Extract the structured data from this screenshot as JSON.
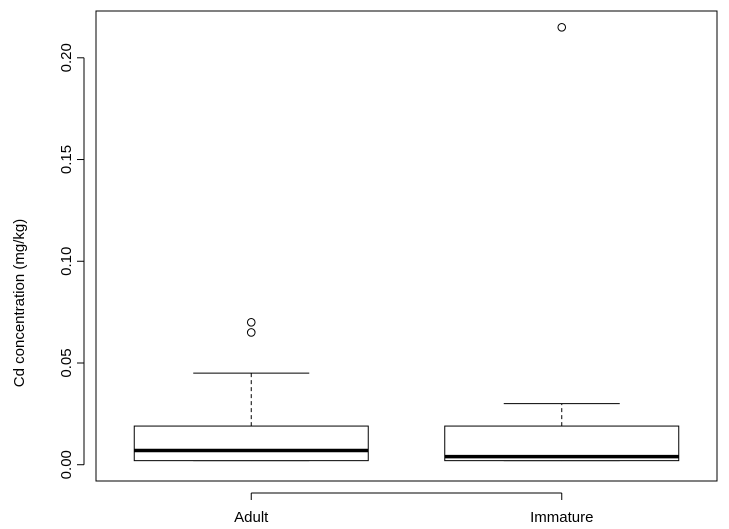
{
  "chart_data": {
    "type": "boxplot",
    "title": "",
    "xlabel": "",
    "ylabel": "Cd concentration (mg/kg)",
    "categories": [
      "Adult",
      "Immature"
    ],
    "ylim": [
      -0.008,
      0.223
    ],
    "yticks": [
      0.0,
      0.05,
      0.1,
      0.15,
      0.2
    ],
    "ytick_labels": [
      "0.00",
      "0.05",
      "0.10",
      "0.15",
      "0.20"
    ],
    "grid": false,
    "boxes": [
      {
        "category": "Adult",
        "whisker_low": 0.002,
        "q1": 0.002,
        "median": 0.007,
        "q3": 0.019,
        "whisker_high": 0.045,
        "outliers": [
          0.065,
          0.07
        ]
      },
      {
        "category": "Immature",
        "whisker_low": 0.002,
        "q1": 0.002,
        "median": 0.004,
        "q3": 0.019,
        "whisker_high": 0.03,
        "outliers": [
          0.215
        ]
      }
    ],
    "colors": {
      "box_fill": "#ffffff",
      "stroke": "#000000",
      "median": "#000000"
    }
  }
}
